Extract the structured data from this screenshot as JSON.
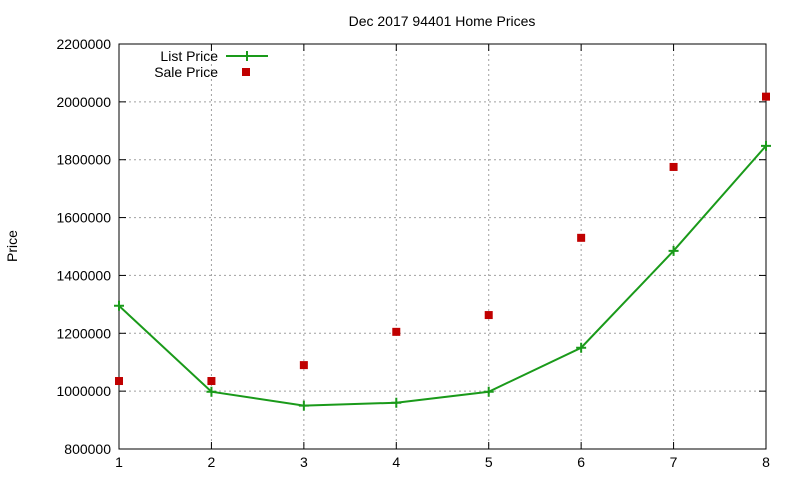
{
  "chart_data": {
    "type": "line",
    "title": "Dec 2017 94401 Home Prices",
    "xlabel": "",
    "ylabel": "Price",
    "xlim": [
      1,
      8
    ],
    "ylim": [
      800000,
      2200000
    ],
    "x_ticks": [
      1,
      2,
      3,
      4,
      5,
      6,
      7,
      8
    ],
    "y_ticks": [
      800000,
      1000000,
      1200000,
      1400000,
      1600000,
      1800000,
      2000000,
      2200000
    ],
    "grid": true,
    "legend_position": "top-left",
    "x": [
      1,
      2,
      3,
      4,
      5,
      6,
      7,
      8
    ],
    "series": [
      {
        "name": "List Price",
        "style": "line+cross",
        "color": "#1a9a1a",
        "values": [
          1295000,
          998000,
          950000,
          960000,
          998000,
          1150000,
          1485000,
          1848000
        ]
      },
      {
        "name": "Sale Price",
        "style": "square-points",
        "color": "#c00000",
        "values": [
          1035000,
          1035000,
          1090000,
          1205000,
          1263000,
          1530000,
          1775000,
          2018000
        ]
      }
    ]
  }
}
